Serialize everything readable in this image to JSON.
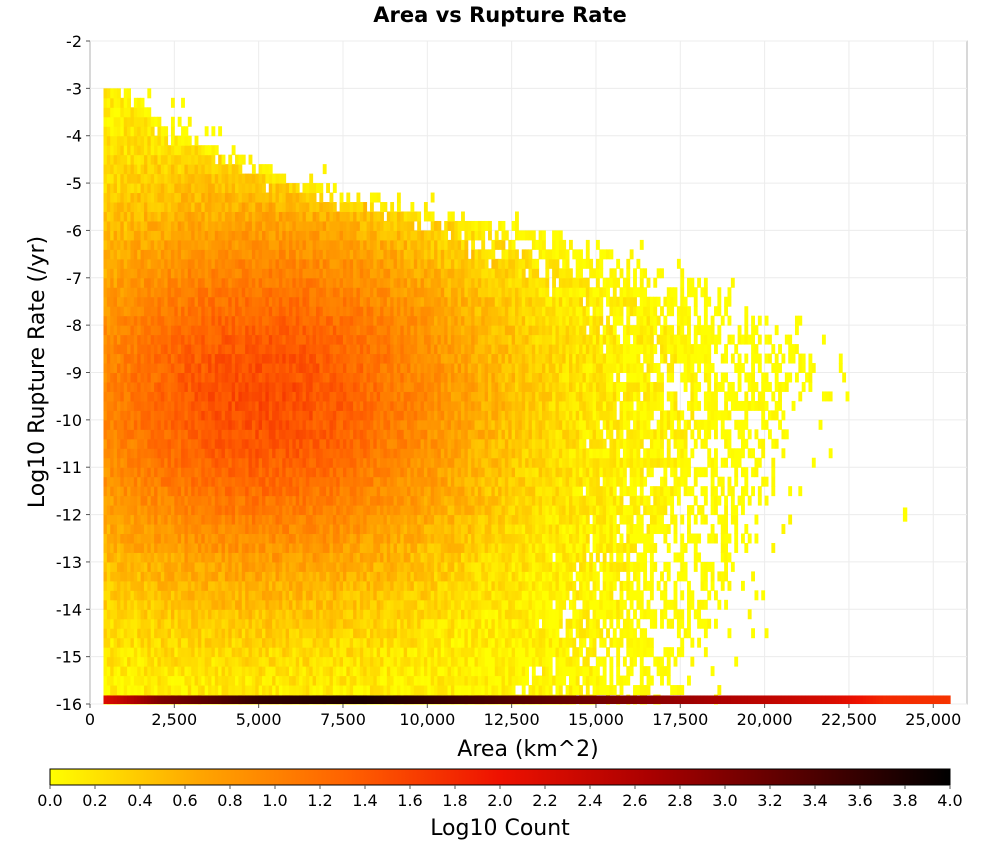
{
  "chart_data": {
    "type": "heatmap",
    "title": "Area vs Rupture Rate",
    "xlabel": "Area (km^2)",
    "ylabel": "Log10 Rupture Rate (/yr)",
    "xlim": [
      0,
      26000
    ],
    "ylim": [
      -16,
      -2
    ],
    "x_ticks": [
      0,
      2500,
      5000,
      7500,
      10000,
      12500,
      15000,
      17500,
      20000,
      22500,
      25000
    ],
    "x_tick_labels": [
      "0",
      "2,500",
      "5,000",
      "7,500",
      "10,000",
      "12,500",
      "15,000",
      "17,500",
      "20,000",
      "22,500",
      "25,000"
    ],
    "y_ticks": [
      -2,
      -3,
      -4,
      -5,
      -6,
      -7,
      -8,
      -9,
      -10,
      -11,
      -12,
      -13,
      -14,
      -15,
      -16
    ],
    "y_tick_labels": [
      "-2",
      "-3",
      "-4",
      "-5",
      "-6",
      "-7",
      "-8",
      "-9",
      "-10",
      "-11",
      "-12",
      "-13",
      "-14",
      "-15",
      "-16"
    ],
    "grid": true,
    "bin_width_x": 100,
    "bin_height_y": 0.2,
    "colorbar": {
      "label": "Log10 Count",
      "min": 0.0,
      "max": 4.0,
      "tick_values": [
        0.0,
        0.2,
        0.4,
        0.6,
        0.8,
        1.0,
        1.2,
        1.4,
        1.6,
        1.8,
        2.0,
        2.2,
        2.4,
        2.6,
        2.8,
        3.0,
        3.2,
        3.4,
        3.6,
        3.8,
        4.0
      ],
      "tick_labels": [
        "0.0",
        "0.2",
        "0.4",
        "0.6",
        "0.8",
        "1.0",
        "1.2",
        "1.4",
        "1.6",
        "1.8",
        "2.0",
        "2.2",
        "2.4",
        "2.6",
        "2.8",
        "3.0",
        "3.2",
        "3.4",
        "3.6",
        "3.8",
        "4.0"
      ],
      "colors": [
        "#ffff00",
        "#ffa500",
        "#ff6000",
        "#ee1100",
        "#aa0000",
        "#550000",
        "#000000"
      ]
    },
    "density_model": {
      "area_min": 400,
      "peak_area": 5000,
      "peak_log_rate": -9.5,
      "peak_value": 1.5,
      "max_area_at_rate": [
        [
          -3,
          900
        ],
        [
          -4,
          2600
        ],
        [
          -5,
          6500
        ],
        [
          -6,
          13500
        ],
        [
          -7,
          17500
        ],
        [
          -8,
          20500
        ],
        [
          -9,
          21500
        ],
        [
          -10,
          21000
        ],
        [
          -11,
          20500
        ],
        [
          -12,
          20000
        ],
        [
          -13,
          19000
        ],
        [
          -14,
          18500
        ],
        [
          -15,
          18000
        ],
        [
          -16,
          17500
        ]
      ]
    },
    "bottom_row": {
      "log_rate": -16,
      "profile": [
        [
          400,
          2.2
        ],
        [
          2000,
          3.0
        ],
        [
          5000,
          3.6
        ],
        [
          8000,
          3.8
        ],
        [
          12000,
          3.4
        ],
        [
          16000,
          3.0
        ],
        [
          19000,
          2.6
        ],
        [
          22000,
          2.2
        ],
        [
          23500,
          1.8
        ],
        [
          25500,
          1.7
        ]
      ]
    },
    "outliers": [
      {
        "area": 24100,
        "log_rate": -12,
        "value": 0.0
      }
    ]
  }
}
